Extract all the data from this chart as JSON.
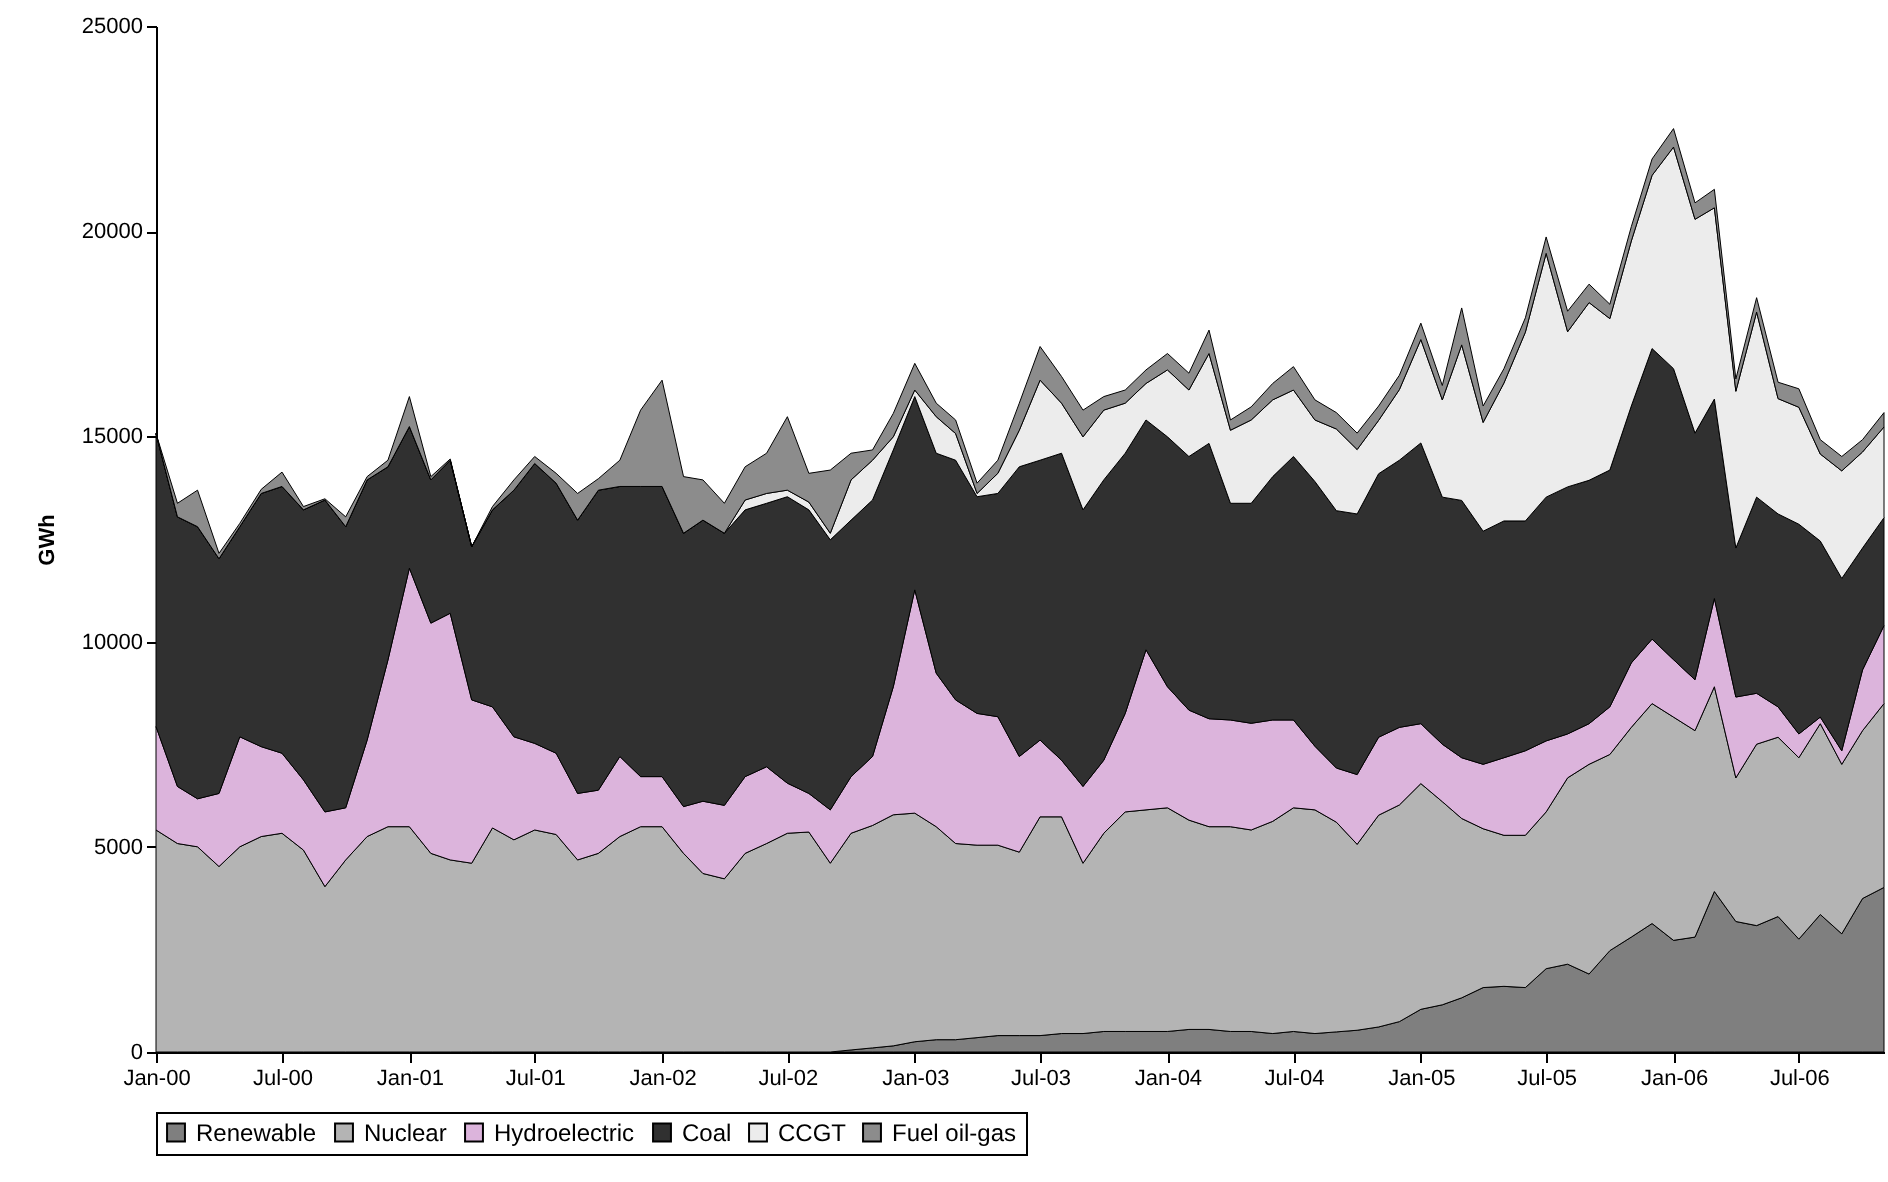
{
  "chart_data": {
    "type": "area",
    "stacked": true,
    "ylabel": "GWh",
    "legend": "bottom",
    "x": [
      "2000-01",
      "2000-02",
      "2000-03",
      "2000-04",
      "2000-05",
      "2000-06",
      "2000-07",
      "2000-08",
      "2000-09",
      "2000-10",
      "2000-11",
      "2000-12",
      "2001-01",
      "2001-02",
      "2001-03",
      "2001-04",
      "2001-05",
      "2001-06",
      "2001-07",
      "2001-08",
      "2001-09",
      "2001-10",
      "2001-11",
      "2001-12",
      "2002-01",
      "2002-02",
      "2002-03",
      "2002-04",
      "2002-05",
      "2002-06",
      "2002-07",
      "2002-08",
      "2002-09",
      "2002-10",
      "2002-11",
      "2002-12",
      "2003-01",
      "2003-02",
      "2003-03",
      "2003-04",
      "2003-05",
      "2003-06",
      "2003-07",
      "2003-08",
      "2003-09",
      "2003-10",
      "2003-11",
      "2003-12",
      "2004-01",
      "2004-02",
      "2004-03",
      "2004-04",
      "2004-05",
      "2004-06",
      "2004-07",
      "2004-08",
      "2004-09",
      "2004-10",
      "2004-11",
      "2004-12",
      "2005-01",
      "2005-02",
      "2005-03",
      "2005-04",
      "2005-05",
      "2005-06",
      "2005-07",
      "2005-08",
      "2005-09",
      "2005-10",
      "2005-11",
      "2005-12",
      "2006-01",
      "2006-02",
      "2006-03",
      "2006-04",
      "2006-05",
      "2006-06",
      "2006-07",
      "2006-08",
      "2006-09",
      "2006-10",
      "2006-11"
    ],
    "xlim": [
      "2000-01",
      "2006-11"
    ],
    "xticks": [
      {
        "value": "2000-01",
        "label": "Jan-00"
      },
      {
        "value": "2000-07",
        "label": "Jul-00"
      },
      {
        "value": "2001-01",
        "label": "Jan-01"
      },
      {
        "value": "2001-07",
        "label": "Jul-01"
      },
      {
        "value": "2002-01",
        "label": "Jan-02"
      },
      {
        "value": "2002-07",
        "label": "Jul-02"
      },
      {
        "value": "2003-01",
        "label": "Jan-03"
      },
      {
        "value": "2003-07",
        "label": "Jul-03"
      },
      {
        "value": "2004-01",
        "label": "Jan-04"
      },
      {
        "value": "2004-07",
        "label": "Jul-04"
      },
      {
        "value": "2005-01",
        "label": "Jan-05"
      },
      {
        "value": "2005-07",
        "label": "Jul-05"
      },
      {
        "value": "2006-01",
        "label": "Jan-06"
      },
      {
        "value": "2006-07",
        "label": "Jul-06"
      }
    ],
    "ylim": [
      0,
      25000
    ],
    "yticks": [
      0,
      5000,
      10000,
      15000,
      20000,
      25000
    ],
    "series": [
      {
        "name": "Renewable",
        "color": "#7f7f7f",
        "values": [
          0,
          0,
          0,
          0,
          0,
          0,
          0,
          0,
          0,
          0,
          0,
          0,
          0,
          0,
          0,
          0,
          0,
          0,
          0,
          0,
          0,
          0,
          0,
          0,
          0,
          0,
          0,
          0,
          0,
          0,
          0,
          0,
          0,
          50,
          100,
          150,
          250,
          300,
          300,
          350,
          400,
          400,
          400,
          450,
          450,
          500,
          500,
          500,
          500,
          550,
          550,
          500,
          500,
          450,
          500,
          450,
          490,
          530,
          610,
          740,
          1040,
          1150,
          1320,
          1570,
          1600,
          1570,
          2030,
          2140,
          1900,
          2470,
          2800,
          3130,
          2720,
          2800,
          3910,
          3180,
          3080,
          3300,
          2750,
          3350,
          2880,
          3740,
          4010
        ]
      },
      {
        "name": "Nuclear",
        "color": "#b4b4b4",
        "values": [
          5410,
          5080,
          5000,
          4520,
          5000,
          5250,
          5330,
          4920,
          4030,
          4680,
          5250,
          5490,
          5490,
          4840,
          4680,
          4600,
          5460,
          5170,
          5410,
          5300,
          4680,
          4840,
          5250,
          5490,
          5490,
          4840,
          4350,
          4220,
          4840,
          5080,
          5330,
          5360,
          4600,
          5280,
          5420,
          5630,
          5570,
          5190,
          4780,
          4690,
          4640,
          4470,
          5330,
          5280,
          4150,
          4830,
          5350,
          5400,
          5450,
          5100,
          4940,
          4990,
          4910,
          5170,
          5450,
          5450,
          5110,
          4530,
          5160,
          5280,
          5500,
          4950,
          4370,
          3870,
          3680,
          3710,
          3820,
          4540,
          5110,
          4780,
          5110,
          5360,
          5440,
          5030,
          4990,
          3500,
          4420,
          4370,
          4420,
          4650,
          4130,
          4090,
          4480
        ]
      },
      {
        "name": "Hydroelectric",
        "color": "#dcb4dc",
        "values": [
          2520,
          1390,
          1170,
          1780,
          2680,
          2190,
          1950,
          1710,
          1820,
          1270,
          2350,
          4060,
          6300,
          5610,
          6010,
          3980,
          2950,
          2510,
          2110,
          1980,
          1620,
          1540,
          1950,
          1220,
          1220,
          1140,
          1760,
          1790,
          1870,
          1870,
          1220,
          940,
          1300,
          1380,
          1680,
          3120,
          5440,
          3740,
          3500,
          3210,
          3130,
          2330,
          1870,
          1380,
          1870,
          1780,
          2400,
          3900,
          2950,
          2680,
          2630,
          2600,
          2600,
          2470,
          2140,
          1550,
          1320,
          1700,
          1900,
          1890,
          1460,
          1400,
          1480,
          1570,
          1890,
          2060,
          1730,
          1070,
          990,
          1160,
          1570,
          1570,
          1400,
          1240,
          2150,
          1970,
          1240,
          740,
          580,
          160,
          330,
          1480,
          1900
        ]
      },
      {
        "name": "Coal",
        "color": "#303030",
        "values": [
          7140,
          6570,
          6630,
          5720,
          5120,
          6170,
          6500,
          6580,
          7600,
          6850,
          6340,
          4710,
          3450,
          3490,
          3730,
          3730,
          4800,
          6010,
          6820,
          6580,
          6660,
          7310,
          6580,
          7070,
          7070,
          6660,
          6850,
          6630,
          6500,
          6420,
          6980,
          6910,
          6580,
          6250,
          6250,
          5770,
          4710,
          5360,
          5840,
          5280,
          5440,
          7060,
          6820,
          7480,
          6740,
          6830,
          6340,
          5600,
          6090,
          6180,
          6710,
          5280,
          5360,
          5930,
          6420,
          6450,
          6270,
          6350,
          6420,
          6510,
          6840,
          6020,
          6270,
          5680,
          5770,
          5600,
          5940,
          6020,
          5930,
          5770,
          6260,
          7080,
          7090,
          6010,
          4860,
          3630,
          4780,
          4700,
          5110,
          4290,
          4200,
          2970,
          2630
        ]
      },
      {
        "name": "CCGT",
        "color": "#ececec",
        "values": [
          0,
          0,
          0,
          0,
          0,
          0,
          0,
          0,
          0,
          0,
          0,
          0,
          0,
          0,
          0,
          0,
          0,
          0,
          0,
          0,
          0,
          0,
          0,
          0,
          0,
          0,
          0,
          0,
          240,
          240,
          160,
          190,
          160,
          980,
          970,
          320,
          160,
          890,
          650,
          80,
          490,
          890,
          1950,
          1220,
          1780,
          1700,
          1220,
          890,
          1630,
          1620,
          2190,
          1780,
          2030,
          1870,
          1620,
          1500,
          1990,
          1570,
          1300,
          1720,
          2520,
          2370,
          3790,
          2650,
          3360,
          4600,
          5940,
          3780,
          4330,
          3690,
          4020,
          4220,
          5400,
          5210,
          4660,
          3820,
          4510,
          2810,
          2850,
          2120,
          2620,
          2340,
          2210
        ]
      },
      {
        "name": "Fuel oil-gas",
        "color": "#8c8c8c",
        "values": [
          0,
          330,
          890,
          130,
          80,
          100,
          350,
          80,
          30,
          240,
          80,
          160,
          730,
          80,
          30,
          0,
          80,
          250,
          170,
          240,
          650,
          280,
          640,
          1860,
          2590,
          1380,
          980,
          730,
          810,
          980,
          1790,
          700,
          1540,
          650,
          250,
          570,
          650,
          330,
          330,
          250,
          320,
          660,
          820,
          650,
          650,
          330,
          320,
          330,
          400,
          410,
          570,
          250,
          320,
          400,
          570,
          490,
          400,
          400,
          350,
          350,
          400,
          350,
          900,
          400,
          350,
          350,
          400,
          500,
          450,
          350,
          350,
          400,
          450,
          400,
          450,
          300,
          350,
          400,
          450,
          350,
          350,
          300,
          350
        ]
      }
    ]
  }
}
